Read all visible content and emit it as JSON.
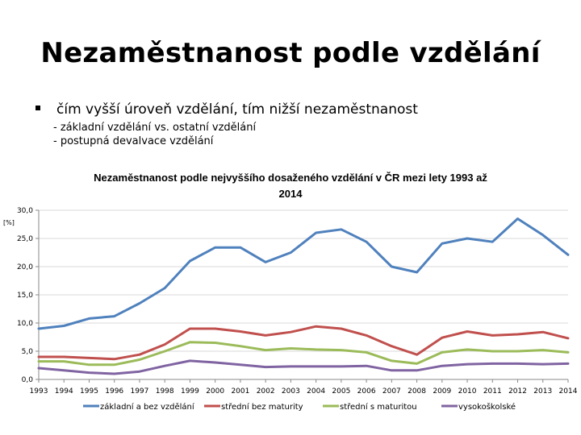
{
  "slide": {
    "title": "Nezaměstnanost podle vzdělání",
    "bullet": "čím vyšší úroveň vzdělání, tím nižší nezaměstnanost",
    "sub_lines": [
      "- základní vzdělání vs. ostatní vzdělání",
      "- postupná devalvace vzdělání"
    ]
  },
  "chart_data": {
    "type": "line",
    "title": "Nezaměstnanost podle nejvyššího dosaženého vzdělání v ČR mezi lety 1993 až 2014",
    "title_lines": [
      "Nezaměstnanost podle nejvyššího dosaženého vzdělání v ČR mezi lety 1993 až",
      "2014"
    ],
    "ylabel": "[%]",
    "xlabel": "",
    "ylim": [
      0,
      30
    ],
    "yticks": [
      "0,0",
      "5,0",
      "10,0",
      "15,0",
      "20,0",
      "25,0",
      "30,0"
    ],
    "categories": [
      "1993",
      "1994",
      "1995",
      "1996",
      "1997",
      "1998",
      "1999",
      "2000",
      "2001",
      "2002",
      "2003",
      "2004",
      "2005",
      "2006",
      "2007",
      "2008",
      "2009",
      "2010",
      "2011",
      "2012",
      "2013",
      "2014"
    ],
    "series": [
      {
        "name": "základní a bez vzdělání",
        "color": "#4f81bd",
        "values": [
          9.0,
          9.5,
          10.8,
          11.2,
          13.5,
          16.2,
          21.0,
          23.4,
          23.4,
          20.8,
          22.5,
          26.0,
          26.6,
          24.4,
          20.0,
          19.0,
          24.1,
          25.0,
          24.4,
          28.5,
          25.6,
          22.1
        ]
      },
      {
        "name": "střední bez maturity",
        "color": "#c0504d",
        "values": [
          4.0,
          4.0,
          3.8,
          3.6,
          4.4,
          6.2,
          9.0,
          9.0,
          8.5,
          7.8,
          8.4,
          9.4,
          9.0,
          7.8,
          5.9,
          4.4,
          7.4,
          8.5,
          7.8,
          8.0,
          8.4,
          7.3
        ]
      },
      {
        "name": "střední s maturitou",
        "color": "#9bbb59",
        "values": [
          3.2,
          3.2,
          2.6,
          2.6,
          3.5,
          5.0,
          6.6,
          6.5,
          5.9,
          5.2,
          5.5,
          5.3,
          5.2,
          4.8,
          3.3,
          2.8,
          4.8,
          5.3,
          5.0,
          5.0,
          5.2,
          4.8
        ]
      },
      {
        "name": "vysokoškolské",
        "color": "#8064a2",
        "values": [
          2.0,
          1.6,
          1.2,
          1.0,
          1.4,
          2.4,
          3.3,
          3.0,
          2.6,
          2.2,
          2.3,
          2.3,
          2.3,
          2.4,
          1.6,
          1.6,
          2.4,
          2.7,
          2.8,
          2.8,
          2.7,
          2.8
        ]
      }
    ],
    "grid": true,
    "legend_position": "bottom"
  }
}
